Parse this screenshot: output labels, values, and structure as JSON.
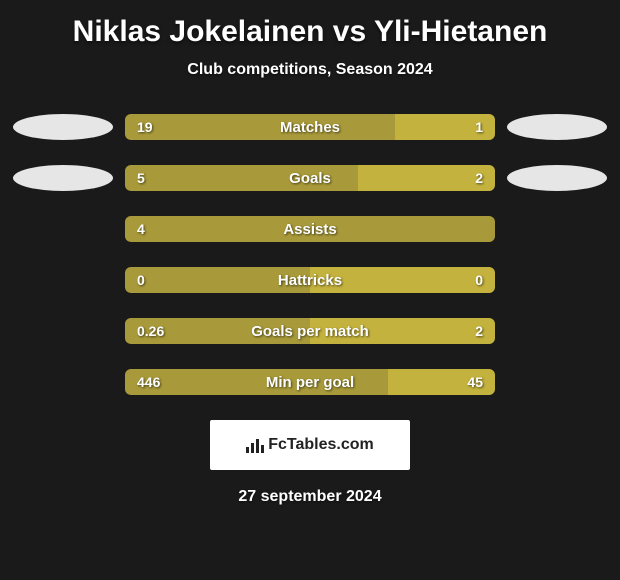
{
  "title": "Niklas Jokelainen vs Yli-Hietanen",
  "subtitle": "Club competitions, Season 2024",
  "date": "27 september 2024",
  "logo_text": "FcTables.com",
  "colors": {
    "left": "#a89a3a",
    "right": "#c4b23e",
    "ellipse": "#e6e6e6",
    "background": "#1a1a1a",
    "text": "#ffffff",
    "bar_bg": "#2a2a2a"
  },
  "stats": [
    {
      "label": "Matches",
      "left_display": "19",
      "right_display": "1",
      "left_pct": 73,
      "right_pct": 27,
      "show_left_ellipse": true,
      "show_right_ellipse": true
    },
    {
      "label": "Goals",
      "left_display": "5",
      "right_display": "2",
      "left_pct": 63,
      "right_pct": 37,
      "show_left_ellipse": true,
      "show_right_ellipse": true
    },
    {
      "label": "Assists",
      "left_display": "4",
      "right_display": "",
      "left_pct": 100,
      "right_pct": 0,
      "show_left_ellipse": false,
      "show_right_ellipse": false
    },
    {
      "label": "Hattricks",
      "left_display": "0",
      "right_display": "0",
      "left_pct": 50,
      "right_pct": 50,
      "show_left_ellipse": false,
      "show_right_ellipse": false
    },
    {
      "label": "Goals per match",
      "left_display": "0.26",
      "right_display": "2",
      "left_pct": 50,
      "right_pct": 50,
      "show_left_ellipse": false,
      "show_right_ellipse": false
    },
    {
      "label": "Min per goal",
      "left_display": "446",
      "right_display": "45",
      "left_pct": 71,
      "right_pct": 29,
      "show_left_ellipse": false,
      "show_right_ellipse": false
    }
  ]
}
